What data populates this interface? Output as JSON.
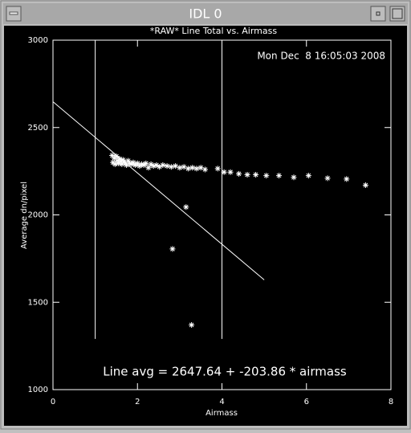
{
  "window_title": "IDL 0",
  "chart_data": {
    "type": "scatter",
    "title": "*RAW* Line Total vs. Airmass",
    "timestamp": "Mon Dec  8 16:05:03 2008",
    "xlabel": "Airmass",
    "ylabel": "Average dn/pixel",
    "annotation": "Line avg = 2647.64 + -203.86 * airmass",
    "xlim": [
      0,
      8
    ],
    "xticks": [
      0,
      2,
      4,
      6,
      8
    ],
    "ylim": [
      1000,
      3000
    ],
    "yticks": [
      1000,
      1500,
      2000,
      2500,
      3000
    ],
    "color": "#ffffff",
    "x": [
      1.4,
      1.42,
      1.45,
      1.47,
      1.5,
      1.52,
      1.55,
      1.58,
      1.6,
      1.63,
      1.66,
      1.7,
      1.74,
      1.78,
      1.82,
      1.86,
      1.9,
      1.95,
      2.0,
      2.05,
      2.1,
      2.15,
      2.2,
      2.26,
      2.32,
      2.38,
      2.45,
      2.52,
      2.6,
      2.7,
      2.8,
      2.9,
      3.0,
      3.1,
      3.2,
      3.3,
      3.4,
      3.5,
      2.83,
      3.15,
      3.28,
      3.6,
      3.9,
      4.05,
      4.2,
      4.4,
      4.6,
      4.8,
      5.05,
      5.35,
      5.7,
      6.05,
      6.5,
      6.95,
      7.4
    ],
    "values": [
      2340,
      2300,
      2325,
      2290,
      2335,
      2310,
      2295,
      2320,
      2305,
      2290,
      2315,
      2300,
      2285,
      2310,
      2295,
      2290,
      2300,
      2285,
      2295,
      2280,
      2290,
      2285,
      2295,
      2270,
      2290,
      2280,
      2285,
      2275,
      2285,
      2280,
      2275,
      2280,
      2270,
      2275,
      2265,
      2270,
      2265,
      2270,
      1805,
      2045,
      1370,
      2260,
      2265,
      2245,
      2245,
      2235,
      2230,
      2230,
      2225,
      2225,
      2215,
      2225,
      2210,
      2205,
      2170
    ],
    "fit": {
      "intercept": 2647.64,
      "slope": -203.86,
      "xrange": [
        0,
        5
      ]
    },
    "vlines": [
      1,
      4
    ],
    "vline_ylim": [
      1290,
      3000
    ]
  }
}
